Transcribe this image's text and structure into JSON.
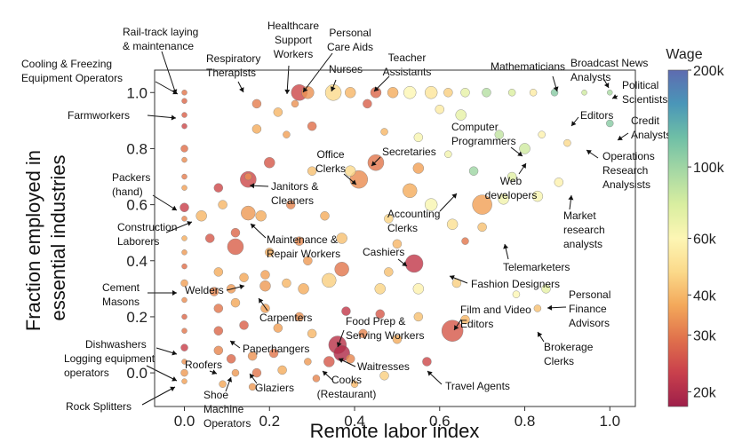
{
  "chart_data": {
    "type": "scatter",
    "xlabel": "Remote labor index",
    "ylabel": [
      "Fraction employed in",
      "essential industries"
    ],
    "xlim": [
      -0.07,
      1.06
    ],
    "ylim": [
      -0.12,
      1.08
    ],
    "xticks": [
      {
        "value": 0.0,
        "label": "0.0"
      },
      {
        "value": 0.2,
        "label": "0.2"
      },
      {
        "value": 0.4,
        "label": "0.4"
      },
      {
        "value": 0.6,
        "label": "0.6"
      },
      {
        "value": 0.8,
        "label": "0.8"
      },
      {
        "value": 1.0,
        "label": "1.0"
      }
    ],
    "yticks": [
      {
        "value": 0.0,
        "label": "0.0"
      },
      {
        "value": 0.2,
        "label": "0.2"
      },
      {
        "value": 0.4,
        "label": "0.4"
      },
      {
        "value": 0.6,
        "label": "0.6"
      },
      {
        "value": 0.8,
        "label": "0.8"
      },
      {
        "value": 1.0,
        "label": "1.0"
      }
    ],
    "grid": false,
    "colorbar": {
      "title": "Wage",
      "scale": "log",
      "range": [
        18000,
        200000
      ],
      "ticks": [
        {
          "value": 20000,
          "label": "20k"
        },
        {
          "value": 30000,
          "label": "30k"
        },
        {
          "value": 40000,
          "label": "40k"
        },
        {
          "value": 60000,
          "label": "60k"
        },
        {
          "value": 100000,
          "label": "100k"
        },
        {
          "value": 200000,
          "label": "200k"
        }
      ],
      "colors": [
        "#9e1f4a",
        "#c9404c",
        "#e0714c",
        "#f3a85a",
        "#fbd98a",
        "#fdf6b4",
        "#d9eea0",
        "#a6d8a4",
        "#6fbfa6",
        "#4a96b8",
        "#5e6bb0"
      ]
    },
    "points": [
      {
        "x": 0.0,
        "y": 1.0,
        "wage": 30000,
        "size": 3
      },
      {
        "x": 0.0,
        "y": 0.97,
        "wage": 28000,
        "size": 3
      },
      {
        "x": 0.0,
        "y": 0.92,
        "wage": 27000,
        "size": 3
      },
      {
        "x": 0.0,
        "y": 0.88,
        "wage": 24000,
        "size": 3
      },
      {
        "x": 0.0,
        "y": 0.8,
        "wage": 29000,
        "size": 4
      },
      {
        "x": 0.0,
        "y": 0.76,
        "wage": 33000,
        "size": 3
      },
      {
        "x": 0.0,
        "y": 0.7,
        "wage": 31000,
        "size": 3
      },
      {
        "x": 0.0,
        "y": 0.66,
        "wage": 36000,
        "size": 3
      },
      {
        "x": 0.0,
        "y": 0.59,
        "wage": 23000,
        "size": 5
      },
      {
        "x": 0.0,
        "y": 0.55,
        "wage": 32000,
        "size": 3
      },
      {
        "x": 0.0,
        "y": 0.48,
        "wage": 38000,
        "size": 3
      },
      {
        "x": 0.0,
        "y": 0.43,
        "wage": 35000,
        "size": 3
      },
      {
        "x": 0.0,
        "y": 0.38,
        "wage": 29000,
        "size": 3
      },
      {
        "x": 0.0,
        "y": 0.32,
        "wage": 36000,
        "size": 4
      },
      {
        "x": 0.0,
        "y": 0.26,
        "wage": 33000,
        "size": 3
      },
      {
        "x": 0.0,
        "y": 0.2,
        "wage": 28000,
        "size": 3
      },
      {
        "x": 0.0,
        "y": 0.15,
        "wage": 30000,
        "size": 3
      },
      {
        "x": 0.0,
        "y": 0.09,
        "wage": 23000,
        "size": 4
      },
      {
        "x": 0.0,
        "y": 0.04,
        "wage": 34000,
        "size": 3
      },
      {
        "x": 0.0,
        "y": 0.0,
        "wage": 35000,
        "size": 4
      },
      {
        "x": 0.0,
        "y": -0.03,
        "wage": 36000,
        "size": 3
      },
      {
        "x": 0.27,
        "y": 1.0,
        "wage": 24000,
        "size": 9
      },
      {
        "x": 0.29,
        "y": 1.0,
        "wage": 34000,
        "size": 7
      },
      {
        "x": 0.35,
        "y": 1.0,
        "wage": 48000,
        "size": 9
      },
      {
        "x": 0.39,
        "y": 1.0,
        "wage": 40000,
        "size": 6
      },
      {
        "x": 0.45,
        "y": 1.0,
        "wage": 28000,
        "size": 6
      },
      {
        "x": 0.49,
        "y": 1.0,
        "wage": 38000,
        "size": 6
      },
      {
        "x": 0.53,
        "y": 1.0,
        "wage": 60000,
        "size": 7
      },
      {
        "x": 0.58,
        "y": 1.0,
        "wage": 52000,
        "size": 7
      },
      {
        "x": 0.62,
        "y": 1.0,
        "wage": 45000,
        "size": 5
      },
      {
        "x": 0.66,
        "y": 1.0,
        "wage": 70000,
        "size": 5
      },
      {
        "x": 0.71,
        "y": 1.0,
        "wage": 90000,
        "size": 5
      },
      {
        "x": 0.77,
        "y": 1.0,
        "wage": 75000,
        "size": 4
      },
      {
        "x": 0.82,
        "y": 1.0,
        "wage": 55000,
        "size": 4
      },
      {
        "x": 0.87,
        "y": 1.0,
        "wage": 110000,
        "size": 4
      },
      {
        "x": 0.94,
        "y": 1.0,
        "wage": 80000,
        "size": 3
      },
      {
        "x": 1.0,
        "y": 1.0,
        "wage": 95000,
        "size": 3
      },
      {
        "x": 0.17,
        "y": 0.96,
        "wage": 31000,
        "size": 5
      },
      {
        "x": 0.22,
        "y": 0.93,
        "wage": 40000,
        "size": 5
      },
      {
        "x": 0.26,
        "y": 0.96,
        "wage": 34000,
        "size": 4
      },
      {
        "x": 0.43,
        "y": 0.96,
        "wage": 27000,
        "size": 5
      },
      {
        "x": 0.6,
        "y": 0.94,
        "wage": 55000,
        "size": 5
      },
      {
        "x": 0.65,
        "y": 0.92,
        "wage": 70000,
        "size": 6
      },
      {
        "x": 0.17,
        "y": 0.87,
        "wage": 38000,
        "size": 5
      },
      {
        "x": 0.24,
        "y": 0.85,
        "wage": 36000,
        "size": 4
      },
      {
        "x": 0.3,
        "y": 0.88,
        "wage": 29000,
        "size": 5
      },
      {
        "x": 0.47,
        "y": 0.86,
        "wage": 40000,
        "size": 4
      },
      {
        "x": 0.55,
        "y": 0.84,
        "wage": 62000,
        "size": 5
      },
      {
        "x": 0.74,
        "y": 0.85,
        "wage": 85000,
        "size": 5
      },
      {
        "x": 0.8,
        "y": 0.8,
        "wage": 80000,
        "size": 6
      },
      {
        "x": 0.84,
        "y": 0.85,
        "wage": 58000,
        "size": 4
      },
      {
        "x": 0.9,
        "y": 0.82,
        "wage": 48000,
        "size": 4
      },
      {
        "x": 0.62,
        "y": 0.78,
        "wage": 65000,
        "size": 4
      },
      {
        "x": 0.68,
        "y": 0.72,
        "wage": 100000,
        "size": 5
      },
      {
        "x": 0.77,
        "y": 0.7,
        "wage": 72000,
        "size": 5
      },
      {
        "x": 0.55,
        "y": 0.73,
        "wage": 36000,
        "size": 6
      },
      {
        "x": 0.45,
        "y": 0.75,
        "wage": 30000,
        "size": 9
      },
      {
        "x": 0.41,
        "y": 0.69,
        "wage": 33000,
        "size": 10
      },
      {
        "x": 0.39,
        "y": 0.72,
        "wage": 48000,
        "size": 6
      },
      {
        "x": 0.2,
        "y": 0.75,
        "wage": 26000,
        "size": 6
      },
      {
        "x": 0.15,
        "y": 0.7,
        "wage": 33000,
        "size": 4
      },
      {
        "x": 0.3,
        "y": 0.72,
        "wage": 42000,
        "size": 5
      },
      {
        "x": 0.08,
        "y": 0.66,
        "wage": 24000,
        "size": 5
      },
      {
        "x": 0.15,
        "y": 0.69,
        "wage": 24000,
        "size": 9
      },
      {
        "x": 0.09,
        "y": 0.6,
        "wage": 40000,
        "size": 5
      },
      {
        "x": 0.04,
        "y": 0.56,
        "wage": 40000,
        "size": 6
      },
      {
        "x": 0.15,
        "y": 0.57,
        "wage": 35000,
        "size": 8
      },
      {
        "x": 0.18,
        "y": 0.56,
        "wage": 38000,
        "size": 6
      },
      {
        "x": 0.25,
        "y": 0.6,
        "wage": 32000,
        "size": 5
      },
      {
        "x": 0.53,
        "y": 0.65,
        "wage": 38000,
        "size": 8
      },
      {
        "x": 0.58,
        "y": 0.6,
        "wage": 62000,
        "size": 7
      },
      {
        "x": 0.7,
        "y": 0.6,
        "wage": 36000,
        "size": 11
      },
      {
        "x": 0.75,
        "y": 0.62,
        "wage": 65000,
        "size": 6
      },
      {
        "x": 0.83,
        "y": 0.63,
        "wage": 62000,
        "size": 6
      },
      {
        "x": 0.88,
        "y": 0.68,
        "wage": 58000,
        "size": 5
      },
      {
        "x": 0.63,
        "y": 0.53,
        "wage": 50000,
        "size": 6
      },
      {
        "x": 0.7,
        "y": 0.52,
        "wage": 42000,
        "size": 5
      },
      {
        "x": 0.48,
        "y": 0.55,
        "wage": 46000,
        "size": 5
      },
      {
        "x": 0.33,
        "y": 0.56,
        "wage": 38000,
        "size": 5
      },
      {
        "x": 0.06,
        "y": 0.48,
        "wage": 26000,
        "size": 5
      },
      {
        "x": 0.12,
        "y": 0.5,
        "wage": 28000,
        "size": 5
      },
      {
        "x": 0.12,
        "y": 0.45,
        "wage": 27000,
        "size": 9
      },
      {
        "x": 0.2,
        "y": 0.43,
        "wage": 38000,
        "size": 5
      },
      {
        "x": 0.27,
        "y": 0.47,
        "wage": 33000,
        "size": 5
      },
      {
        "x": 0.37,
        "y": 0.48,
        "wage": 42000,
        "size": 6
      },
      {
        "x": 0.5,
        "y": 0.46,
        "wage": 40000,
        "size": 5
      },
      {
        "x": 0.66,
        "y": 0.47,
        "wage": 30000,
        "size": 4
      },
      {
        "x": 0.54,
        "y": 0.39,
        "wage": 22000,
        "size": 10
      },
      {
        "x": 0.37,
        "y": 0.37,
        "wage": 30000,
        "size": 8
      },
      {
        "x": 0.48,
        "y": 0.36,
        "wage": 42000,
        "size": 5
      },
      {
        "x": 0.29,
        "y": 0.4,
        "wage": 35000,
        "size": 5
      },
      {
        "x": 0.08,
        "y": 0.36,
        "wage": 38000,
        "size": 5
      },
      {
        "x": 0.14,
        "y": 0.34,
        "wage": 37000,
        "size": 5
      },
      {
        "x": 0.19,
        "y": 0.35,
        "wage": 36000,
        "size": 5
      },
      {
        "x": 0.07,
        "y": 0.29,
        "wage": 32000,
        "size": 5
      },
      {
        "x": 0.11,
        "y": 0.3,
        "wage": 35000,
        "size": 5
      },
      {
        "x": 0.19,
        "y": 0.31,
        "wage": 35000,
        "size": 6
      },
      {
        "x": 0.24,
        "y": 0.32,
        "wage": 40000,
        "size": 5
      },
      {
        "x": 0.28,
        "y": 0.3,
        "wage": 38000,
        "size": 6
      },
      {
        "x": 0.34,
        "y": 0.33,
        "wage": 45000,
        "size": 8
      },
      {
        "x": 0.46,
        "y": 0.3,
        "wage": 46000,
        "size": 6
      },
      {
        "x": 0.55,
        "y": 0.3,
        "wage": 58000,
        "size": 6
      },
      {
        "x": 0.64,
        "y": 0.32,
        "wage": 45000,
        "size": 5
      },
      {
        "x": 0.08,
        "y": 0.23,
        "wage": 30000,
        "size": 5
      },
      {
        "x": 0.12,
        "y": 0.25,
        "wage": 37000,
        "size": 5
      },
      {
        "x": 0.19,
        "y": 0.23,
        "wage": 36000,
        "size": 5
      },
      {
        "x": 0.27,
        "y": 0.2,
        "wage": 34000,
        "size": 5
      },
      {
        "x": 0.38,
        "y": 0.22,
        "wage": 22000,
        "size": 5
      },
      {
        "x": 0.46,
        "y": 0.21,
        "wage": 26000,
        "size": 5
      },
      {
        "x": 0.55,
        "y": 0.2,
        "wage": 42000,
        "size": 5
      },
      {
        "x": 0.63,
        "y": 0.15,
        "wage": 26000,
        "size": 12
      },
      {
        "x": 0.66,
        "y": 0.19,
        "wage": 40000,
        "size": 5
      },
      {
        "x": 0.08,
        "y": 0.15,
        "wage": 28000,
        "size": 5
      },
      {
        "x": 0.14,
        "y": 0.17,
        "wage": 27000,
        "size": 5
      },
      {
        "x": 0.22,
        "y": 0.16,
        "wage": 36000,
        "size": 5
      },
      {
        "x": 0.3,
        "y": 0.14,
        "wage": 40000,
        "size": 5
      },
      {
        "x": 0.42,
        "y": 0.14,
        "wage": 32000,
        "size": 5
      },
      {
        "x": 0.5,
        "y": 0.12,
        "wage": 38000,
        "size": 5
      },
      {
        "x": 0.36,
        "y": 0.1,
        "wage": 21000,
        "size": 10
      },
      {
        "x": 0.37,
        "y": 0.07,
        "wage": 20000,
        "size": 9
      },
      {
        "x": 0.34,
        "y": 0.04,
        "wage": 26000,
        "size": 6
      },
      {
        "x": 0.39,
        "y": 0.05,
        "wage": 32000,
        "size": 5
      },
      {
        "x": 0.57,
        "y": 0.04,
        "wage": 24000,
        "size": 5
      },
      {
        "x": 0.08,
        "y": 0.08,
        "wage": 32000,
        "size": 5
      },
      {
        "x": 0.11,
        "y": 0.05,
        "wage": 28000,
        "size": 5
      },
      {
        "x": 0.16,
        "y": 0.06,
        "wage": 34000,
        "size": 5
      },
      {
        "x": 0.21,
        "y": 0.07,
        "wage": 30000,
        "size": 5
      },
      {
        "x": 0.29,
        "y": 0.04,
        "wage": 35000,
        "size": 4
      },
      {
        "x": 0.12,
        "y": 0.0,
        "wage": 35000,
        "size": 4
      },
      {
        "x": 0.17,
        "y": 0.0,
        "wage": 30000,
        "size": 5
      },
      {
        "x": 0.23,
        "y": 0.01,
        "wage": 38000,
        "size": 5
      },
      {
        "x": 0.31,
        "y": -0.02,
        "wage": 32000,
        "size": 4
      },
      {
        "x": 0.09,
        "y": -0.04,
        "wage": 37000,
        "size": 4
      },
      {
        "x": 0.16,
        "y": -0.05,
        "wage": 35000,
        "size": 4
      },
      {
        "x": 0.4,
        "y": -0.04,
        "wage": 40000,
        "size": 4
      },
      {
        "x": 0.47,
        "y": -0.01,
        "wage": 45000,
        "size": 5
      },
      {
        "x": 0.78,
        "y": 0.28,
        "wage": 60000,
        "size": 4
      },
      {
        "x": 0.85,
        "y": 0.3,
        "wage": 70000,
        "size": 5
      },
      {
        "x": 0.83,
        "y": 0.23,
        "wage": 42000,
        "size": 4
      },
      {
        "x": 1.0,
        "y": 0.89,
        "wage": 110000,
        "size": 4
      }
    ]
  },
  "annotations": [
    {
      "id": "rail-track",
      "lines": [
        "Rail-track laying",
        "& maintenance"
      ]
    },
    {
      "id": "cooling",
      "lines": [
        "Cooling & Freezing",
        "Equipment Operators"
      ]
    },
    {
      "id": "farmworkers",
      "lines": [
        "Farmworkers"
      ]
    },
    {
      "id": "packers",
      "lines": [
        "Packers",
        "(hand)"
      ]
    },
    {
      "id": "construction",
      "lines": [
        "Construction",
        "Laborers"
      ]
    },
    {
      "id": "cement",
      "lines": [
        "Cement",
        "Masons"
      ]
    },
    {
      "id": "dishwashers",
      "lines": [
        "Dishwashers"
      ]
    },
    {
      "id": "logging",
      "lines": [
        "Logging equipment",
        "operators"
      ]
    },
    {
      "id": "rock",
      "lines": [
        "Rock Splitters"
      ]
    },
    {
      "id": "respiratory",
      "lines": [
        "Respiratory",
        "Therapists"
      ]
    },
    {
      "id": "healthcare",
      "lines": [
        "Healthcare",
        "Support",
        "Workers"
      ]
    },
    {
      "id": "personal-care",
      "lines": [
        "Personal",
        "Care Aids"
      ]
    },
    {
      "id": "nurses",
      "lines": [
        "Nurses"
      ]
    },
    {
      "id": "teacher",
      "lines": [
        "Teacher",
        "Assistants"
      ]
    },
    {
      "id": "mathematicians",
      "lines": [
        "Mathematicians"
      ]
    },
    {
      "id": "broadcast",
      "lines": [
        "Broadcast News",
        "Analysts"
      ]
    },
    {
      "id": "political",
      "lines": [
        "Political",
        "Scientists"
      ]
    },
    {
      "id": "editors",
      "lines": [
        "Editors"
      ]
    },
    {
      "id": "credit",
      "lines": [
        "Credit",
        "Analysts"
      ]
    },
    {
      "id": "computer",
      "lines": [
        "Computer",
        "Programmers"
      ]
    },
    {
      "id": "operations",
      "lines": [
        "Operations",
        "Research",
        "Analysists"
      ]
    },
    {
      "id": "web",
      "lines": [
        "Web",
        "developers"
      ]
    },
    {
      "id": "market",
      "lines": [
        "Market",
        "research",
        "analysts"
      ]
    },
    {
      "id": "office",
      "lines": [
        "Office",
        "Clerks"
      ]
    },
    {
      "id": "secretaries",
      "lines": [
        "Secretaries"
      ]
    },
    {
      "id": "janitors",
      "lines": [
        "Janitors &",
        "Cleaners"
      ]
    },
    {
      "id": "accounting",
      "lines": [
        "Accounting",
        "Clerks"
      ]
    },
    {
      "id": "maintenance",
      "lines": [
        "Maintenance &",
        "Repair Workers"
      ]
    },
    {
      "id": "telemarketers",
      "lines": [
        "Telemarketers"
      ]
    },
    {
      "id": "cashiers",
      "lines": [
        "Cashiers"
      ]
    },
    {
      "id": "fashion",
      "lines": [
        "Fashion Designers"
      ]
    },
    {
      "id": "welders",
      "lines": [
        "Welders"
      ]
    },
    {
      "id": "carpenters",
      "lines": [
        "Carpenters"
      ]
    },
    {
      "id": "personal-finance",
      "lines": [
        "Personal",
        "Finance",
        "Advisors"
      ]
    },
    {
      "id": "film",
      "lines": [
        "Film and Video",
        "Editors"
      ]
    },
    {
      "id": "food-prep",
      "lines": [
        "Food Prep &",
        "Serving Workers"
      ]
    },
    {
      "id": "paperhangers",
      "lines": [
        "Paperhangers"
      ]
    },
    {
      "id": "brokerage",
      "lines": [
        "Brokerage",
        "Clerks"
      ]
    },
    {
      "id": "roofers",
      "lines": [
        "Roofers"
      ]
    },
    {
      "id": "waitresses",
      "lines": [
        "Waitresses"
      ]
    },
    {
      "id": "glaziers",
      "lines": [
        "Glaziers"
      ]
    },
    {
      "id": "cooks",
      "lines": [
        "Cooks",
        "(Restaurant)"
      ]
    },
    {
      "id": "travel",
      "lines": [
        "Travel Agents"
      ]
    },
    {
      "id": "shoe",
      "lines": [
        "Shoe",
        "Machine",
        "Operators"
      ]
    }
  ]
}
